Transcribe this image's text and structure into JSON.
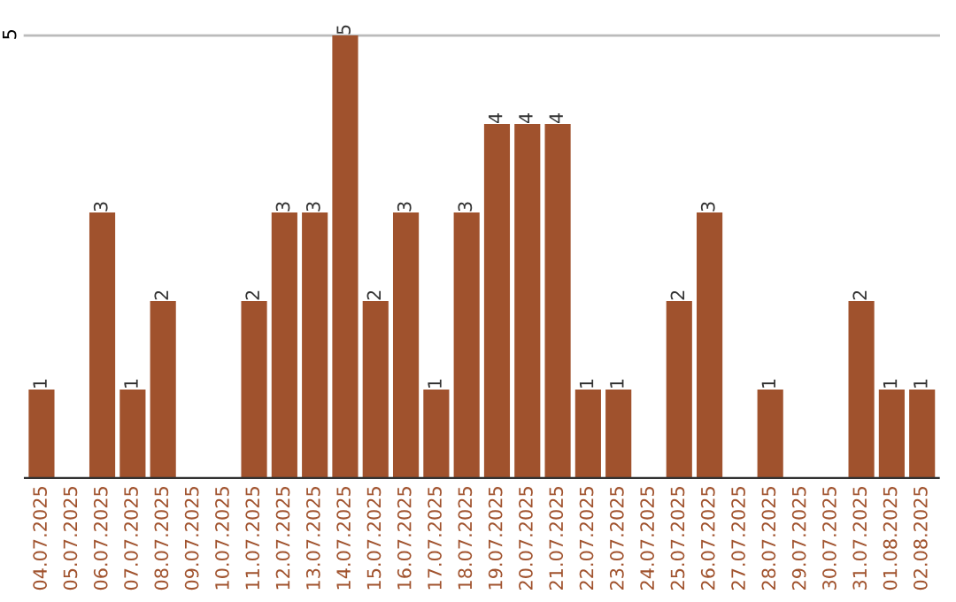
{
  "chart_data": {
    "type": "bar",
    "categories": [
      "04.07.2025",
      "05.07.2025",
      "06.07.2025",
      "07.07.2025",
      "08.07.2025",
      "09.07.2025",
      "10.07.2025",
      "11.07.2025",
      "12.07.2025",
      "13.07.2025",
      "14.07.2025",
      "15.07.2025",
      "16.07.2025",
      "17.07.2025",
      "18.07.2025",
      "19.07.2025",
      "20.07.2025",
      "21.07.2025",
      "22.07.2025",
      "23.07.2025",
      "24.07.2025",
      "25.07.2025",
      "26.07.2025",
      "27.07.2025",
      "28.07.2025",
      "29.07.2025",
      "30.07.2025",
      "31.07.2025",
      "01.08.2025",
      "02.08.2025"
    ],
    "values": [
      1,
      0,
      3,
      1,
      2,
      0,
      0,
      2,
      3,
      3,
      5,
      2,
      3,
      1,
      3,
      4,
      4,
      4,
      1,
      1,
      0,
      2,
      3,
      0,
      1,
      0,
      0,
      2,
      1,
      1
    ],
    "value_labels": [
      "1",
      null,
      "3",
      "1",
      "2",
      null,
      null,
      "2",
      "3",
      "3",
      "5",
      "2",
      "3",
      "1",
      "3",
      "4",
      "4",
      "4",
      "1",
      "1",
      null,
      "2",
      "3",
      null,
      "1",
      null,
      null,
      "2",
      "1",
      "1"
    ],
    "color": "#a0522d",
    "ylim": [
      0,
      5
    ],
    "yticks": [
      5
    ],
    "ref_lines": [
      {
        "axis": "y",
        "value": 5,
        "color": "#bbbbbb"
      }
    ]
  }
}
